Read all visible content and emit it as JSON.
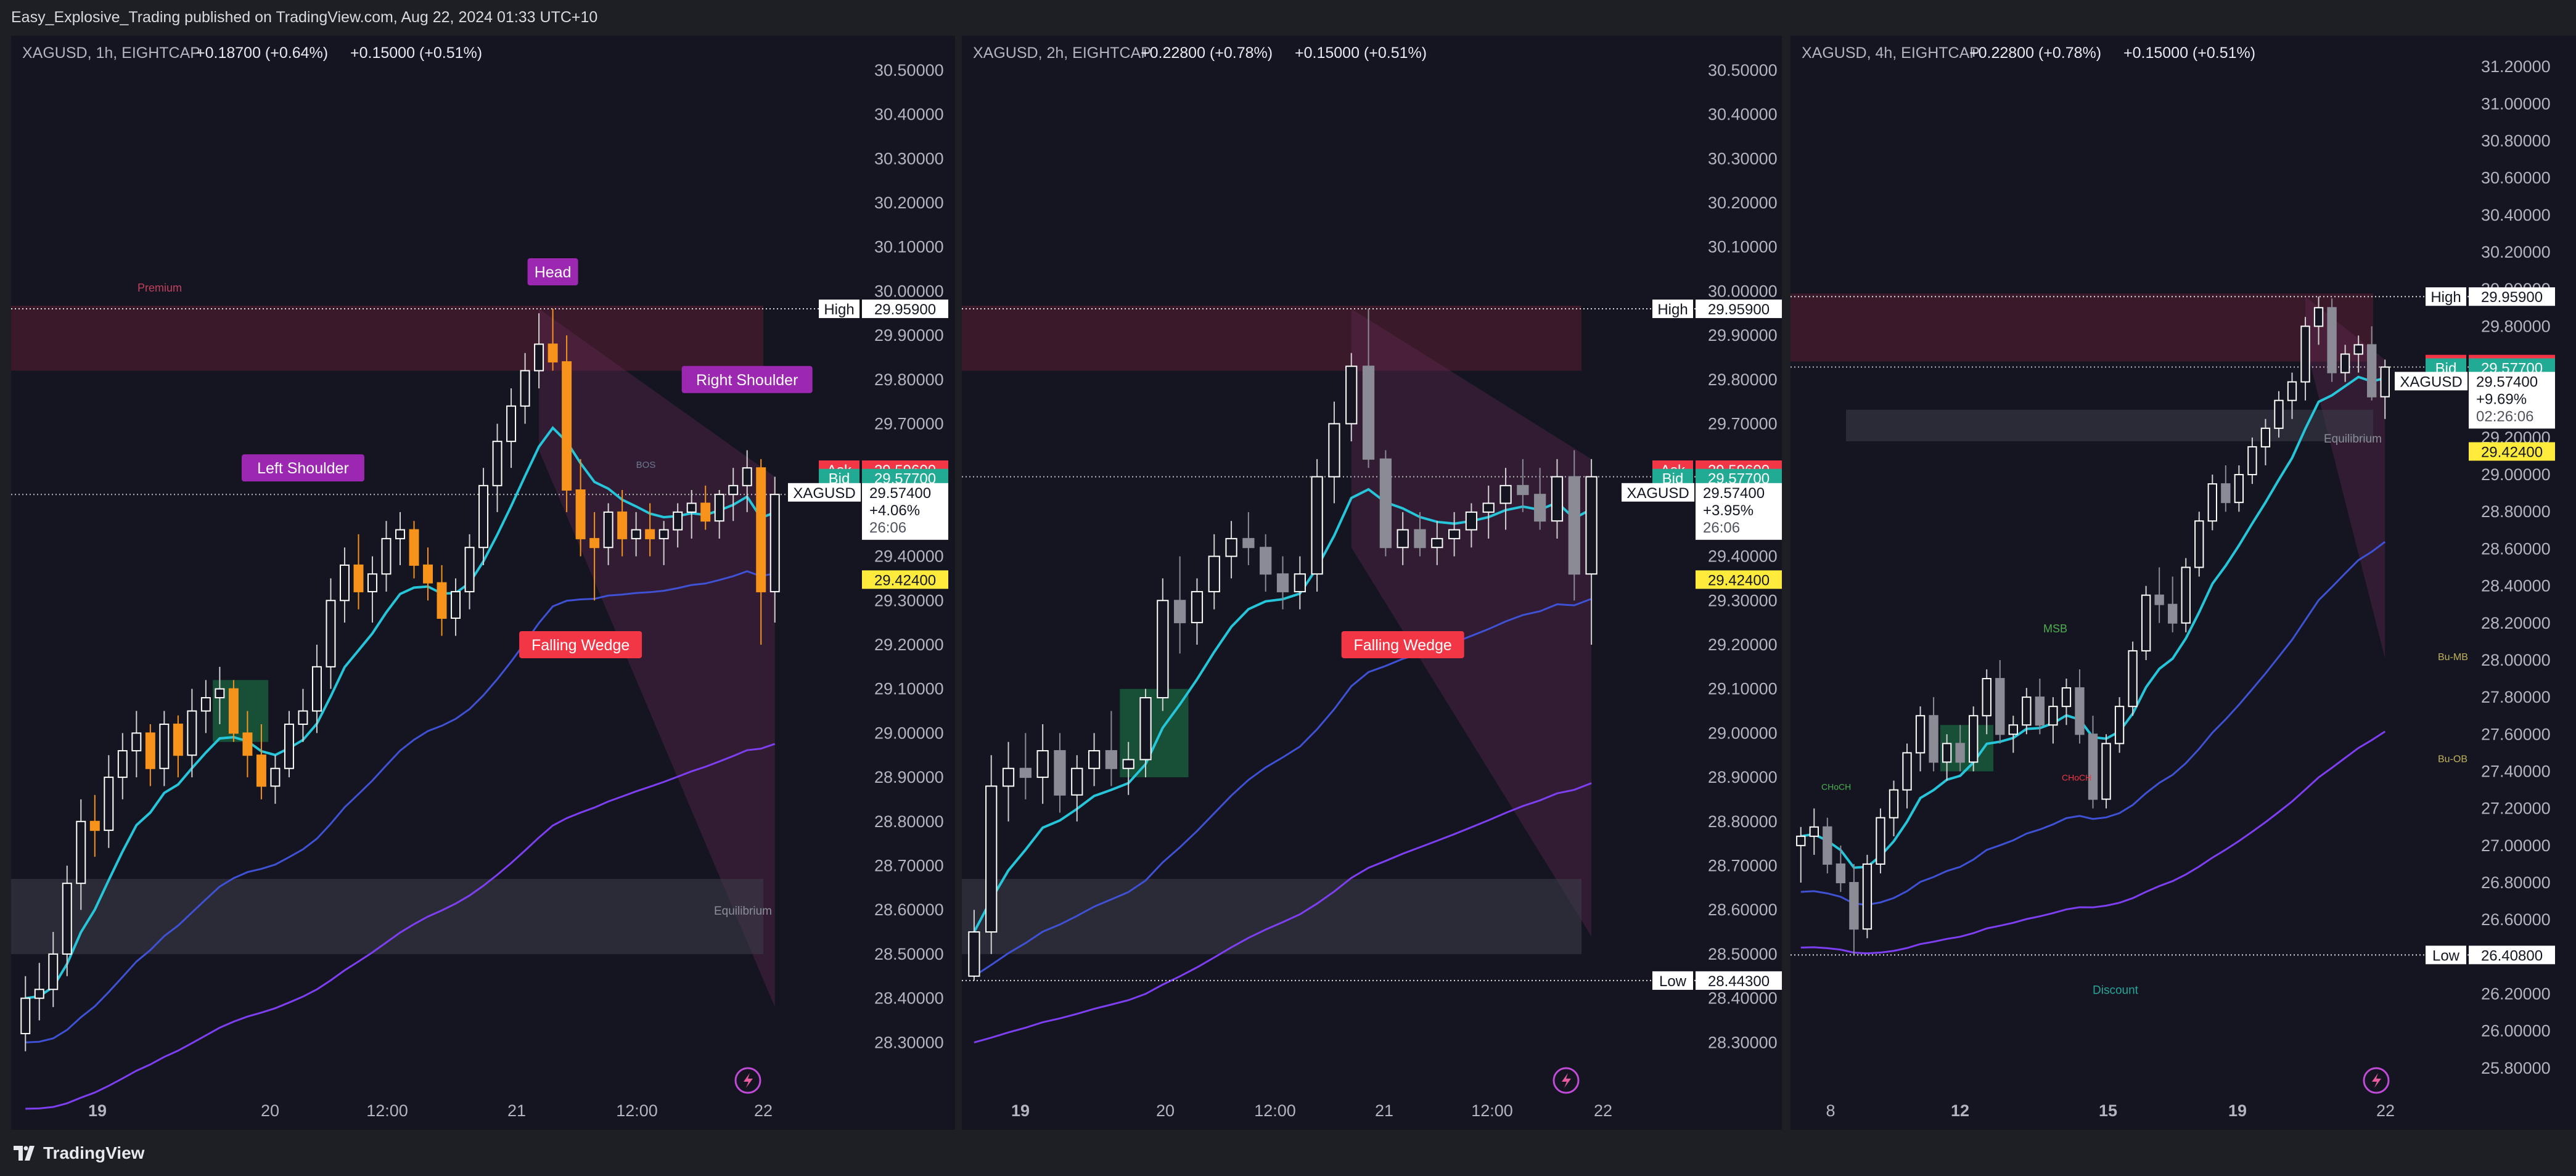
{
  "header": {
    "published_by": "Easy_Explosive_Trading published on TradingView.com, Aug 22, 2024 01:33 UTC+10"
  },
  "footer": {
    "brand": "TradingView"
  },
  "colors": {
    "background": "#141521",
    "candle_up": "#ffffff",
    "candle_down_highlight": "#f7931a",
    "ema_fast": "#26c6da",
    "ema_slow": "#3f51d4",
    "ema_slowest": "#7e3ff2",
    "premium_zone": "#5a1f33",
    "order_block_green": "#1a7f4b",
    "label_purple": "#9c27b0",
    "label_red": "#f23645",
    "ask": "#f23645",
    "bid": "#22ab94",
    "last_price": "#ffeb3b"
  },
  "icons": [
    "tradingview-logo-icon",
    "lightning-icon"
  ],
  "chart_data": [
    {
      "type": "candlestick",
      "legend": {
        "symbol": "XAGUSD, 1h, EIGHTCAP",
        "change1": "+0.18700 (+0.64%)",
        "change2": "+0.15000 (+0.51%)"
      },
      "y_ticks": [
        "30.50000",
        "30.40000",
        "30.30000",
        "30.20000",
        "30.10000",
        "30.00000",
        "29.90000",
        "29.80000",
        "29.70000",
        "29.60000",
        "29.50000",
        "29.40000",
        "29.30000",
        "29.20000",
        "29.10000",
        "29.00000",
        "28.90000",
        "28.80000",
        "28.70000",
        "28.60000",
        "28.50000",
        "28.40000",
        "28.30000"
      ],
      "ylim": [
        28.2,
        30.55
      ],
      "x_ticks": [
        "19",
        "20",
        "12:00",
        "21",
        "12:00",
        "22"
      ],
      "price_labels": {
        "high_label": "High",
        "high_value": "29.95900",
        "ask_label": "Ask",
        "ask_value": "29.59600",
        "bid_label": "Bid",
        "bid_value": "29.57700",
        "symbol_label": "XAGUSD",
        "symbol_value": "29.57400",
        "symbol_change": "+4.06%",
        "symbol_timer": "26:06",
        "last_value": "29.42400"
      },
      "annotations": {
        "premium": "Premium",
        "head": "Head",
        "left_shoulder": "Left Shoulder",
        "right_shoulder": "Right Shoulder",
        "falling_wedge": "Falling Wedge",
        "bos": "BOS",
        "equilibrium": "Equilibrium"
      },
      "candles": [
        [
          28.32,
          28.45,
          28.28,
          28.4
        ],
        [
          28.4,
          28.48,
          28.35,
          28.42
        ],
        [
          28.42,
          28.55,
          28.38,
          28.5
        ],
        [
          28.5,
          28.7,
          28.45,
          28.66
        ],
        [
          28.66,
          28.85,
          28.6,
          28.8
        ],
        [
          28.8,
          28.86,
          28.72,
          28.78
        ],
        [
          28.78,
          28.95,
          28.74,
          28.9
        ],
        [
          28.9,
          29.0,
          28.85,
          28.96
        ],
        [
          28.96,
          29.05,
          28.9,
          29.0
        ],
        [
          29.0,
          29.02,
          28.88,
          28.92
        ],
        [
          28.92,
          29.05,
          28.88,
          29.02
        ],
        [
          29.02,
          29.04,
          28.9,
          28.95
        ],
        [
          28.95,
          29.1,
          28.9,
          29.05
        ],
        [
          29.05,
          29.12,
          29.0,
          29.08
        ],
        [
          29.08,
          29.15,
          29.02,
          29.1
        ],
        [
          29.1,
          29.12,
          28.98,
          29.0
        ],
        [
          29.0,
          29.05,
          28.9,
          28.95
        ],
        [
          28.95,
          29.02,
          28.85,
          28.88
        ],
        [
          28.88,
          28.95,
          28.84,
          28.92
        ],
        [
          28.92,
          29.05,
          28.9,
          29.02
        ],
        [
          29.02,
          29.1,
          28.98,
          29.05
        ],
        [
          29.05,
          29.2,
          29.0,
          29.15
        ],
        [
          29.15,
          29.35,
          29.1,
          29.3
        ],
        [
          29.3,
          29.42,
          29.25,
          29.38
        ],
        [
          29.38,
          29.45,
          29.28,
          29.32
        ],
        [
          29.32,
          29.4,
          29.25,
          29.36
        ],
        [
          29.36,
          29.48,
          29.32,
          29.44
        ],
        [
          29.44,
          29.5,
          29.38,
          29.46
        ],
        [
          29.46,
          29.48,
          29.35,
          29.38
        ],
        [
          29.38,
          29.42,
          29.3,
          29.34
        ],
        [
          29.34,
          29.38,
          29.22,
          29.26
        ],
        [
          29.26,
          29.35,
          29.22,
          29.32
        ],
        [
          29.32,
          29.45,
          29.28,
          29.42
        ],
        [
          29.42,
          29.6,
          29.38,
          29.56
        ],
        [
          29.56,
          29.7,
          29.5,
          29.66
        ],
        [
          29.66,
          29.78,
          29.6,
          29.74
        ],
        [
          29.74,
          29.86,
          29.7,
          29.82
        ],
        [
          29.82,
          29.95,
          29.78,
          29.88
        ],
        [
          29.88,
          29.96,
          29.82,
          29.84
        ],
        [
          29.84,
          29.9,
          29.5,
          29.55
        ],
        [
          29.55,
          29.62,
          29.4,
          29.44
        ],
        [
          29.44,
          29.5,
          29.3,
          29.42
        ],
        [
          29.42,
          29.52,
          29.38,
          29.5
        ],
        [
          29.5,
          29.55,
          29.4,
          29.44
        ],
        [
          29.44,
          29.5,
          29.4,
          29.46
        ],
        [
          29.46,
          29.52,
          29.4,
          29.44
        ],
        [
          29.44,
          29.48,
          29.38,
          29.46
        ],
        [
          29.46,
          29.52,
          29.42,
          29.5
        ],
        [
          29.5,
          29.55,
          29.44,
          29.52
        ],
        [
          29.52,
          29.56,
          29.46,
          29.48
        ],
        [
          29.48,
          29.55,
          29.44,
          29.54
        ],
        [
          29.54,
          29.6,
          29.48,
          29.56
        ],
        [
          29.56,
          29.64,
          29.5,
          29.6
        ],
        [
          29.6,
          29.62,
          29.2,
          29.32
        ],
        [
          29.32,
          29.58,
          29.25,
          29.54
        ]
      ]
    },
    {
      "type": "candlestick",
      "legend": {
        "symbol": "XAGUSD, 2h, EIGHTCAP",
        "change1": "+0.22800 (+0.78%)",
        "change2": "+0.15000 (+0.51%)"
      },
      "y_ticks": [
        "30.50000",
        "30.40000",
        "30.30000",
        "30.20000",
        "30.10000",
        "30.00000",
        "29.90000",
        "29.80000",
        "29.70000",
        "29.60000",
        "29.50000",
        "29.40000",
        "29.30000",
        "29.20000",
        "29.10000",
        "29.00000",
        "28.90000",
        "28.80000",
        "28.70000",
        "28.60000",
        "28.50000",
        "28.40000",
        "28.30000"
      ],
      "ylim": [
        28.2,
        30.55
      ],
      "x_ticks": [
        "19",
        "20",
        "12:00",
        "21",
        "12:00",
        "22"
      ],
      "price_labels": {
        "high_label": "High",
        "high_value": "29.95900",
        "ask_label": "Ask",
        "ask_value": "29.59600",
        "bid_label": "Bid",
        "bid_value": "29.57700",
        "symbol_label": "XAGUSD",
        "symbol_value": "29.57400",
        "symbol_change": "+3.95%",
        "symbol_timer": "26:06",
        "last_value": "29.42400",
        "low_label": "Low",
        "low_value": "28.44300"
      },
      "annotations": {
        "falling_wedge": "Falling Wedge"
      },
      "candles": [
        [
          28.45,
          28.6,
          28.44,
          28.55
        ],
        [
          28.55,
          28.95,
          28.5,
          28.88
        ],
        [
          28.88,
          28.98,
          28.8,
          28.92
        ],
        [
          28.92,
          29.0,
          28.85,
          28.9
        ],
        [
          28.9,
          29.02,
          28.84,
          28.96
        ],
        [
          28.96,
          29.0,
          28.82,
          28.86
        ],
        [
          28.86,
          28.95,
          28.8,
          28.92
        ],
        [
          28.92,
          29.0,
          28.88,
          28.96
        ],
        [
          28.96,
          29.05,
          28.88,
          28.92
        ],
        [
          28.92,
          28.98,
          28.86,
          28.94
        ],
        [
          28.94,
          29.1,
          28.9,
          29.08
        ],
        [
          29.08,
          29.35,
          29.05,
          29.3
        ],
        [
          29.3,
          29.4,
          29.18,
          29.25
        ],
        [
          29.25,
          29.35,
          29.2,
          29.32
        ],
        [
          29.32,
          29.45,
          29.28,
          29.4
        ],
        [
          29.4,
          29.48,
          29.35,
          29.44
        ],
        [
          29.44,
          29.5,
          29.38,
          29.42
        ],
        [
          29.42,
          29.45,
          29.32,
          29.36
        ],
        [
          29.36,
          29.4,
          29.28,
          29.32
        ],
        [
          29.32,
          29.4,
          29.28,
          29.36
        ],
        [
          29.36,
          29.62,
          29.32,
          29.58
        ],
        [
          29.58,
          29.75,
          29.52,
          29.7
        ],
        [
          29.7,
          29.86,
          29.66,
          29.83
        ],
        [
          29.83,
          29.96,
          29.6,
          29.62
        ],
        [
          29.62,
          29.64,
          29.4,
          29.42
        ],
        [
          29.42,
          29.5,
          29.38,
          29.46
        ],
        [
          29.46,
          29.5,
          29.4,
          29.42
        ],
        [
          29.42,
          29.48,
          29.38,
          29.44
        ],
        [
          29.44,
          29.5,
          29.4,
          29.46
        ],
        [
          29.46,
          29.52,
          29.42,
          29.5
        ],
        [
          29.5,
          29.56,
          29.44,
          29.52
        ],
        [
          29.52,
          29.6,
          29.46,
          29.56
        ],
        [
          29.56,
          29.62,
          29.5,
          29.54
        ],
        [
          29.54,
          29.6,
          29.46,
          29.48
        ],
        [
          29.48,
          29.62,
          29.44,
          29.58
        ],
        [
          29.58,
          29.64,
          29.3,
          29.36
        ],
        [
          29.36,
          29.62,
          29.2,
          29.58
        ]
      ]
    },
    {
      "type": "candlestick",
      "legend": {
        "symbol": "XAGUSD, 4h, EIGHTCAP",
        "change1": "+0.22800 (+0.78%)",
        "change2": "+0.15000 (+0.51%)"
      },
      "y_ticks": [
        "31.20000",
        "31.00000",
        "30.80000",
        "30.60000",
        "30.40000",
        "30.20000",
        "30.00000",
        "29.80000",
        "29.60000",
        "29.40000",
        "29.20000",
        "29.00000",
        "28.80000",
        "28.60000",
        "28.40000",
        "28.20000",
        "28.00000",
        "27.80000",
        "27.60000",
        "27.40000",
        "27.20000",
        "27.00000",
        "26.80000",
        "26.60000",
        "26.40000",
        "26.20000",
        "26.00000",
        "25.80000"
      ],
      "ylim": [
        25.7,
        31.3
      ],
      "x_ticks": [
        "8",
        "12",
        "15",
        "19",
        "22"
      ],
      "price_labels": {
        "high_label": "High",
        "high_value": "29.95900",
        "ask_label": "Ask",
        "ask_value": "29.59600",
        "bid_label": "Bid",
        "bid_value": "29.57700",
        "symbol_label": "XAGUSD",
        "symbol_value": "29.57400",
        "symbol_change": "+9.69%",
        "symbol_timer": "02:26:06",
        "last_value": "29.42400",
        "low_label": "Low",
        "low_value": "26.40800"
      },
      "annotations": {
        "equilibrium": "Equilibrium",
        "msb": "MSB",
        "bu_mb": "Bu-MB",
        "bu_ob": "Bu-OB",
        "choch_left": "CHoCH",
        "choch_mid": "CHoCH",
        "discount": "Discount"
      },
      "candles": [
        [
          27.0,
          27.1,
          26.8,
          27.05
        ],
        [
          27.05,
          27.2,
          26.95,
          27.1
        ],
        [
          27.1,
          27.15,
          26.85,
          26.9
        ],
        [
          26.9,
          27.0,
          26.75,
          26.8
        ],
        [
          26.8,
          26.9,
          26.41,
          26.55
        ],
        [
          26.55,
          26.95,
          26.5,
          26.9
        ],
        [
          26.9,
          27.2,
          26.85,
          27.15
        ],
        [
          27.15,
          27.35,
          27.05,
          27.3
        ],
        [
          27.3,
          27.55,
          27.2,
          27.5
        ],
        [
          27.5,
          27.75,
          27.4,
          27.7
        ],
        [
          27.7,
          27.8,
          27.4,
          27.45
        ],
        [
          27.45,
          27.6,
          27.35,
          27.55
        ],
        [
          27.55,
          27.65,
          27.4,
          27.45
        ],
        [
          27.45,
          27.75,
          27.4,
          27.7
        ],
        [
          27.7,
          27.95,
          27.6,
          27.9
        ],
        [
          27.9,
          28.0,
          27.55,
          27.6
        ],
        [
          27.6,
          27.7,
          27.5,
          27.65
        ],
        [
          27.65,
          27.85,
          27.6,
          27.8
        ],
        [
          27.8,
          27.9,
          27.6,
          27.65
        ],
        [
          27.65,
          27.8,
          27.55,
          27.75
        ],
        [
          27.75,
          27.9,
          27.65,
          27.85
        ],
        [
          27.85,
          27.95,
          27.55,
          27.6
        ],
        [
          27.6,
          27.7,
          27.2,
          27.25
        ],
        [
          27.25,
          27.6,
          27.2,
          27.55
        ],
        [
          27.55,
          27.8,
          27.5,
          27.75
        ],
        [
          27.75,
          28.1,
          27.7,
          28.05
        ],
        [
          28.05,
          28.4,
          28.0,
          28.35
        ],
        [
          28.35,
          28.5,
          28.2,
          28.3
        ],
        [
          28.3,
          28.45,
          28.15,
          28.2
        ],
        [
          28.2,
          28.55,
          28.15,
          28.5
        ],
        [
          28.5,
          28.8,
          28.45,
          28.75
        ],
        [
          28.75,
          29.0,
          28.7,
          28.95
        ],
        [
          28.95,
          29.05,
          28.8,
          28.85
        ],
        [
          28.85,
          29.05,
          28.8,
          29.0
        ],
        [
          29.0,
          29.2,
          28.95,
          29.15
        ],
        [
          29.15,
          29.3,
          29.05,
          29.25
        ],
        [
          29.25,
          29.45,
          29.2,
          29.4
        ],
        [
          29.4,
          29.55,
          29.3,
          29.5
        ],
        [
          29.5,
          29.85,
          29.4,
          29.8
        ],
        [
          29.8,
          29.96,
          29.7,
          29.9
        ],
        [
          29.9,
          29.95,
          29.5,
          29.55
        ],
        [
          29.55,
          29.7,
          29.5,
          29.65
        ],
        [
          29.65,
          29.75,
          29.55,
          29.7
        ],
        [
          29.7,
          29.8,
          29.4,
          29.42
        ],
        [
          29.42,
          29.62,
          29.3,
          29.58
        ]
      ]
    }
  ]
}
